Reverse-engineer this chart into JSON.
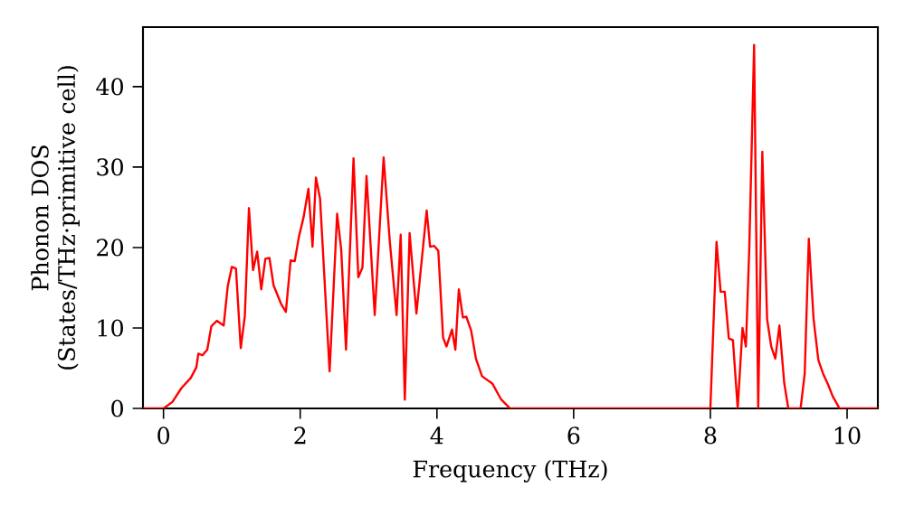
{
  "chart_data": {
    "type": "line",
    "xlabel": "Frequency (THz)",
    "ylabel": "Phonon DOS (States/THz·primitive cell)",
    "xlim": [
      -0.3,
      10.45
    ],
    "ylim": [
      0,
      47.4
    ],
    "xticks": [
      0,
      2,
      4,
      6,
      8,
      10
    ],
    "yticks": [
      0,
      10,
      20,
      30,
      40
    ],
    "grid": false,
    "series": [
      {
        "color": "#ff0000",
        "x": [
          -0.3,
          0.0,
          0.13,
          0.26,
          0.4,
          0.48,
          0.51,
          0.57,
          0.64,
          0.7,
          0.78,
          0.88,
          0.94,
          1.0,
          1.06,
          1.13,
          1.19,
          1.25,
          1.31,
          1.37,
          1.43,
          1.49,
          1.55,
          1.61,
          1.72,
          1.79,
          1.86,
          1.92,
          1.98,
          2.05,
          2.12,
          2.18,
          2.23,
          2.29,
          2.43,
          2.54,
          2.6,
          2.67,
          2.78,
          2.85,
          2.91,
          2.97,
          3.09,
          3.22,
          3.31,
          3.41,
          3.47,
          3.53,
          3.6,
          3.7,
          3.85,
          3.9,
          3.96,
          4.02,
          4.09,
          4.14,
          4.22,
          4.27,
          4.32,
          4.38,
          4.43,
          4.5,
          4.57,
          4.66,
          4.81,
          4.94,
          5.07,
          8.0,
          8.09,
          8.15,
          8.21,
          8.27,
          8.33,
          8.4,
          8.47,
          8.52,
          8.57,
          8.64,
          8.7,
          8.76,
          8.83,
          8.89,
          8.95,
          9.01,
          9.08,
          9.14,
          9.32,
          9.38,
          9.44,
          9.51,
          9.58,
          9.65,
          9.72,
          9.79,
          9.89,
          10.45
        ],
        "values": [
          0,
          0,
          0.8,
          2.5,
          3.8,
          5.1,
          6.8,
          6.6,
          7.3,
          10.2,
          10.9,
          10.3,
          15.2,
          17.6,
          17.4,
          7.5,
          11.5,
          24.9,
          17.2,
          19.5,
          14.8,
          18.6,
          18.7,
          15.3,
          13.0,
          12.0,
          18.4,
          18.3,
          21.3,
          23.8,
          27.3,
          20.1,
          28.7,
          26.1,
          4.6,
          24.2,
          19.7,
          7.3,
          31.1,
          16.3,
          17.5,
          28.9,
          11.6,
          31.2,
          20.8,
          11.6,
          21.6,
          1.1,
          21.8,
          11.8,
          24.6,
          20.1,
          20.2,
          19.6,
          8.8,
          7.7,
          9.8,
          7.3,
          14.8,
          11.3,
          11.4,
          9.7,
          6.2,
          4.0,
          3.1,
          1.1,
          0,
          0,
          20.7,
          14.5,
          14.5,
          8.7,
          8.5,
          0,
          10.0,
          7.7,
          20.1,
          45.2,
          0,
          31.9,
          11.1,
          7.7,
          6.2,
          10.3,
          3.2,
          0,
          0,
          4.3,
          21.1,
          11.1,
          6.0,
          4.3,
          3.0,
          1.5,
          0,
          0
        ]
      }
    ]
  }
}
